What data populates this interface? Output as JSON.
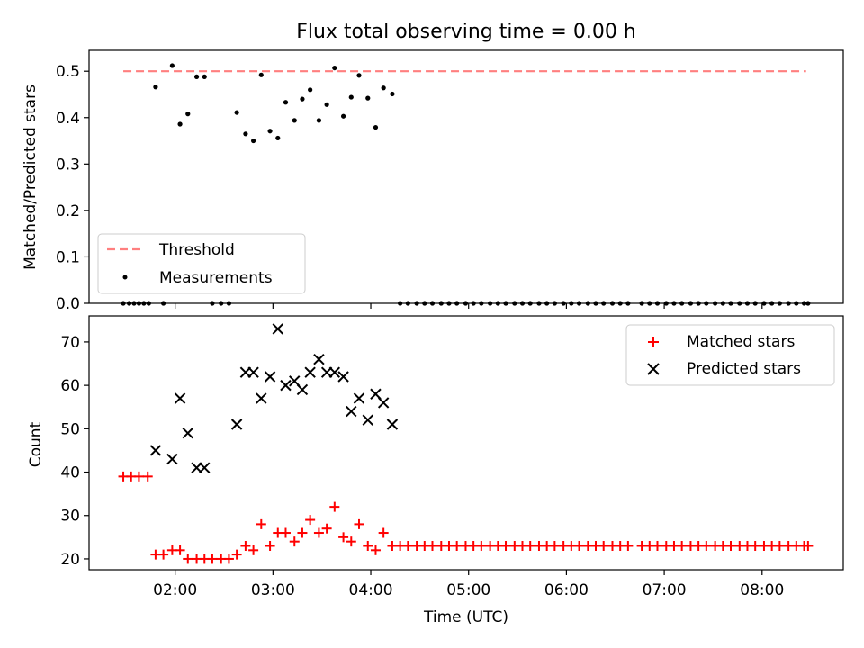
{
  "chart_data": [
    {
      "type": "scatter",
      "title": "Flux total observing time = 0.00 h",
      "xlabel": "",
      "ylabel": "Matched/Predicted stars",
      "xlim": [
        1.12,
        8.83
      ],
      "ylim": [
        0.0,
        0.545
      ],
      "yticks": [
        "0.0",
        "0.1",
        "0.2",
        "0.3",
        "0.4",
        "0.5"
      ],
      "legend": "lower-left",
      "series": [
        {
          "name": "Threshold",
          "kind": "dashed-line",
          "color": "#ff7f7f",
          "x": [
            1.47,
            8.45
          ],
          "y": [
            0.5,
            0.5
          ]
        },
        {
          "name": "Measurements",
          "kind": "dots",
          "color": "#000000",
          "x": [
            1.47,
            1.53,
            1.58,
            1.63,
            1.68,
            1.73,
            1.8,
            1.88,
            1.97,
            2.05,
            2.13,
            2.22,
            2.3,
            2.38,
            2.47,
            2.55,
            2.63,
            2.72,
            2.8,
            2.88,
            2.97,
            3.05,
            3.13,
            3.22,
            3.3,
            3.38,
            3.47,
            3.55,
            3.63,
            3.72,
            3.8,
            3.88,
            3.97,
            4.05,
            4.13,
            4.22,
            4.3,
            4.38,
            4.47,
            4.55,
            4.63,
            4.72,
            4.8,
            4.88,
            4.97,
            5.05,
            5.13,
            5.22,
            5.3,
            5.38,
            5.47,
            5.55,
            5.63,
            5.72,
            5.8,
            5.88,
            5.97,
            6.05,
            6.13,
            6.22,
            6.3,
            6.38,
            6.47,
            6.55,
            6.63,
            6.77,
            6.85,
            6.93,
            7.02,
            7.1,
            7.18,
            7.27,
            7.35,
            7.43,
            7.52,
            7.6,
            7.68,
            7.77,
            7.85,
            7.93,
            8.02,
            8.1,
            8.18,
            8.27,
            8.35,
            8.43,
            8.47
          ],
          "y": [
            0.0,
            0.0,
            0.0,
            0.0,
            0.0,
            0.0,
            0.466,
            0.0,
            0.512,
            0.386,
            0.408,
            0.488,
            0.488,
            0.0,
            0.0,
            0.0,
            0.411,
            0.365,
            0.35,
            0.492,
            0.371,
            0.356,
            0.433,
            0.394,
            0.44,
            0.46,
            0.394,
            0.428,
            0.507,
            0.403,
            0.444,
            0.491,
            0.442,
            0.379,
            0.464,
            0.451,
            0.0,
            0.0,
            0.0,
            0.0,
            0.0,
            0.0,
            0.0,
            0.0,
            0.0,
            0.0,
            0.0,
            0.0,
            0.0,
            0.0,
            0.0,
            0.0,
            0.0,
            0.0,
            0.0,
            0.0,
            0.0,
            0.0,
            0.0,
            0.0,
            0.0,
            0.0,
            0.0,
            0.0,
            0.0,
            0.0,
            0.0,
            0.0,
            0.0,
            0.0,
            0.0,
            0.0,
            0.0,
            0.0,
            0.0,
            0.0,
            0.0,
            0.0,
            0.0,
            0.0,
            0.0,
            0.0,
            0.0,
            0.0,
            0.0,
            0.0,
            0.0
          ]
        }
      ]
    },
    {
      "type": "scatter",
      "title": "",
      "xlabel": "Time (UTC)",
      "ylabel": "Count",
      "xlim": [
        1.12,
        8.83
      ],
      "ylim": [
        17.5,
        76.0
      ],
      "yticks": [
        "20",
        "30",
        "40",
        "50",
        "60",
        "70"
      ],
      "xticks": [
        "02:00",
        "03:00",
        "04:00",
        "05:00",
        "06:00",
        "07:00",
        "08:00"
      ],
      "legend": "top-right",
      "series": [
        {
          "name": "Matched stars",
          "kind": "plus",
          "color": "#ff0000",
          "x": [
            1.47,
            1.55,
            1.63,
            1.72,
            1.8,
            1.88,
            1.97,
            2.05,
            2.13,
            2.22,
            2.3,
            2.38,
            2.47,
            2.55,
            2.63,
            2.72,
            2.8,
            2.88,
            2.97,
            3.05,
            3.13,
            3.22,
            3.3,
            3.38,
            3.47,
            3.55,
            3.63,
            3.72,
            3.8,
            3.88,
            3.97,
            4.05,
            4.13,
            4.22,
            4.3,
            4.38,
            4.47,
            4.55,
            4.63,
            4.72,
            4.8,
            4.88,
            4.97,
            5.05,
            5.13,
            5.22,
            5.3,
            5.38,
            5.47,
            5.55,
            5.63,
            5.72,
            5.8,
            5.88,
            5.97,
            6.05,
            6.13,
            6.22,
            6.3,
            6.38,
            6.47,
            6.55,
            6.63,
            6.77,
            6.85,
            6.93,
            7.02,
            7.1,
            7.18,
            7.27,
            7.35,
            7.43,
            7.52,
            7.6,
            7.68,
            7.77,
            7.85,
            7.93,
            8.02,
            8.1,
            8.18,
            8.27,
            8.35,
            8.43,
            8.47
          ],
          "y": [
            39,
            39,
            39,
            39,
            21,
            21,
            22,
            22,
            20,
            20,
            20,
            20,
            20,
            20,
            21,
            23,
            22,
            28,
            23,
            26,
            26,
            24,
            26,
            29,
            26,
            27,
            32,
            25,
            24,
            28,
            23,
            22,
            26,
            23,
            23,
            23,
            23,
            23,
            23,
            23,
            23,
            23,
            23,
            23,
            23,
            23,
            23,
            23,
            23,
            23,
            23,
            23,
            23,
            23,
            23,
            23,
            23,
            23,
            23,
            23,
            23,
            23,
            23,
            23,
            23,
            23,
            23,
            23,
            23,
            23,
            23,
            23,
            23,
            23,
            23,
            23,
            23,
            23,
            23,
            23,
            23,
            23,
            23,
            23,
            23
          ]
        },
        {
          "name": "Predicted stars",
          "kind": "x",
          "color": "#000000",
          "x": [
            1.8,
            1.97,
            2.05,
            2.13,
            2.22,
            2.3,
            2.63,
            2.72,
            2.8,
            2.88,
            2.97,
            3.05,
            3.13,
            3.22,
            3.3,
            3.38,
            3.47,
            3.55,
            3.63,
            3.72,
            3.8,
            3.88,
            3.97,
            4.05,
            4.13,
            4.22
          ],
          "y": [
            45,
            43,
            57,
            49,
            41,
            41,
            51,
            63,
            63,
            57,
            62,
            73,
            60,
            61,
            59,
            63,
            66,
            63,
            63,
            62,
            54,
            57,
            52,
            58,
            56,
            51
          ]
        }
      ]
    }
  ],
  "colors": {
    "axis": "#000000",
    "threshold": "#ff7f7f",
    "matched": "#ff0000",
    "predicted": "#000000",
    "legend_border": "#cccccc"
  }
}
